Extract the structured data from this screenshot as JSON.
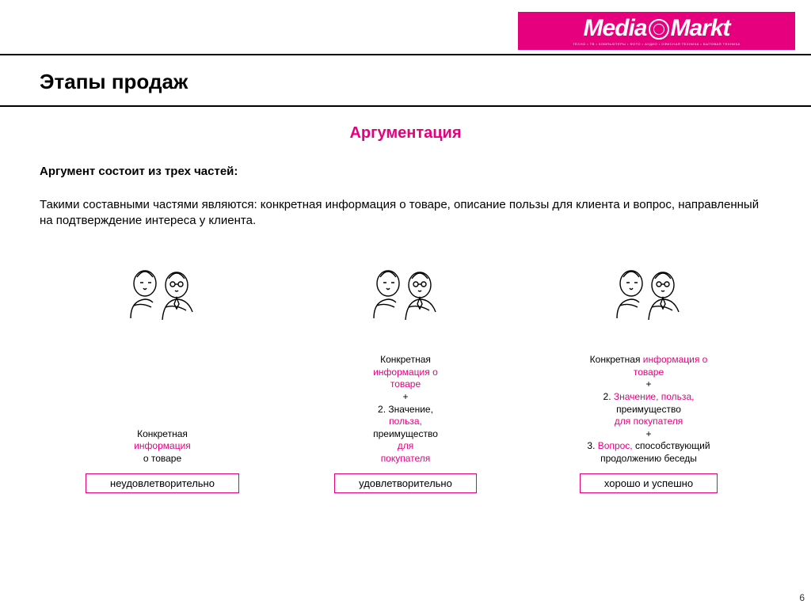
{
  "logo": {
    "text_left": "Media",
    "text_right": "Markt",
    "bg_color": "#e6007e",
    "fg_color": "#ffffff"
  },
  "title": "Этапы продаж",
  "subtitle": "Аргументация",
  "intro_bold": "Аргумент состоит из трех частей:",
  "intro_para": "Такими составными частями являются: конкретная информация о товаре, описание пользы для клиента и вопрос, направленный на подтверждение интереса у клиента.",
  "columns": [
    {
      "caption_lines": [
        {
          "t": "Конкретная",
          "c": "blk"
        },
        {
          "t": "информация",
          "c": "k"
        },
        {
          "t": "о товаре",
          "c": "blk"
        }
      ],
      "rating": "неудовлетворительно"
    },
    {
      "caption_lines": [
        {
          "t": "Конкретная",
          "c": "blk"
        },
        {
          "t": "информация о",
          "c": "k"
        },
        {
          "t": "товаре",
          "c": "k"
        },
        {
          "t": "+",
          "c": "blk"
        },
        {
          "t": "2. Значение,",
          "c": "blk"
        },
        {
          "t": "польза,",
          "c": "k"
        },
        {
          "t": "преимущество",
          "c": "blk"
        },
        {
          "t": "для",
          "c": "k"
        },
        {
          "t": "покупателя",
          "c": "k"
        }
      ],
      "rating": "удовлетворительно"
    },
    {
      "caption_lines": [
        {
          "t": "Конкретная ",
          "c": "blk",
          "inline_next": true
        },
        {
          "t": "информация о",
          "c": "k"
        },
        {
          "t": "товаре",
          "c": "k"
        },
        {
          "t": "+",
          "c": "blk"
        },
        {
          "t": "2. ",
          "c": "blk",
          "inline_next": true
        },
        {
          "t": "Значение, польза,",
          "c": "k"
        },
        {
          "t": "преимущество",
          "c": "blk"
        },
        {
          "t": "для покупателя",
          "c": "k"
        },
        {
          "t": "+",
          "c": "blk"
        },
        {
          "t": "3. ",
          "c": "blk",
          "inline_next": true
        },
        {
          "t": "Вопрос, ",
          "c": "k",
          "inline_next": true
        },
        {
          "t": "способствующий",
          "c": "blk"
        },
        {
          "t": "продолжению беседы",
          "c": "blk"
        }
      ],
      "rating": "хорошо и успешно"
    }
  ],
  "page_number": "6",
  "accent_color": "#e6007e",
  "border_color": "#000000",
  "text_color": "#000000",
  "caption_fontsize": 12,
  "title_fontsize": 26,
  "subtitle_fontsize": 20
}
